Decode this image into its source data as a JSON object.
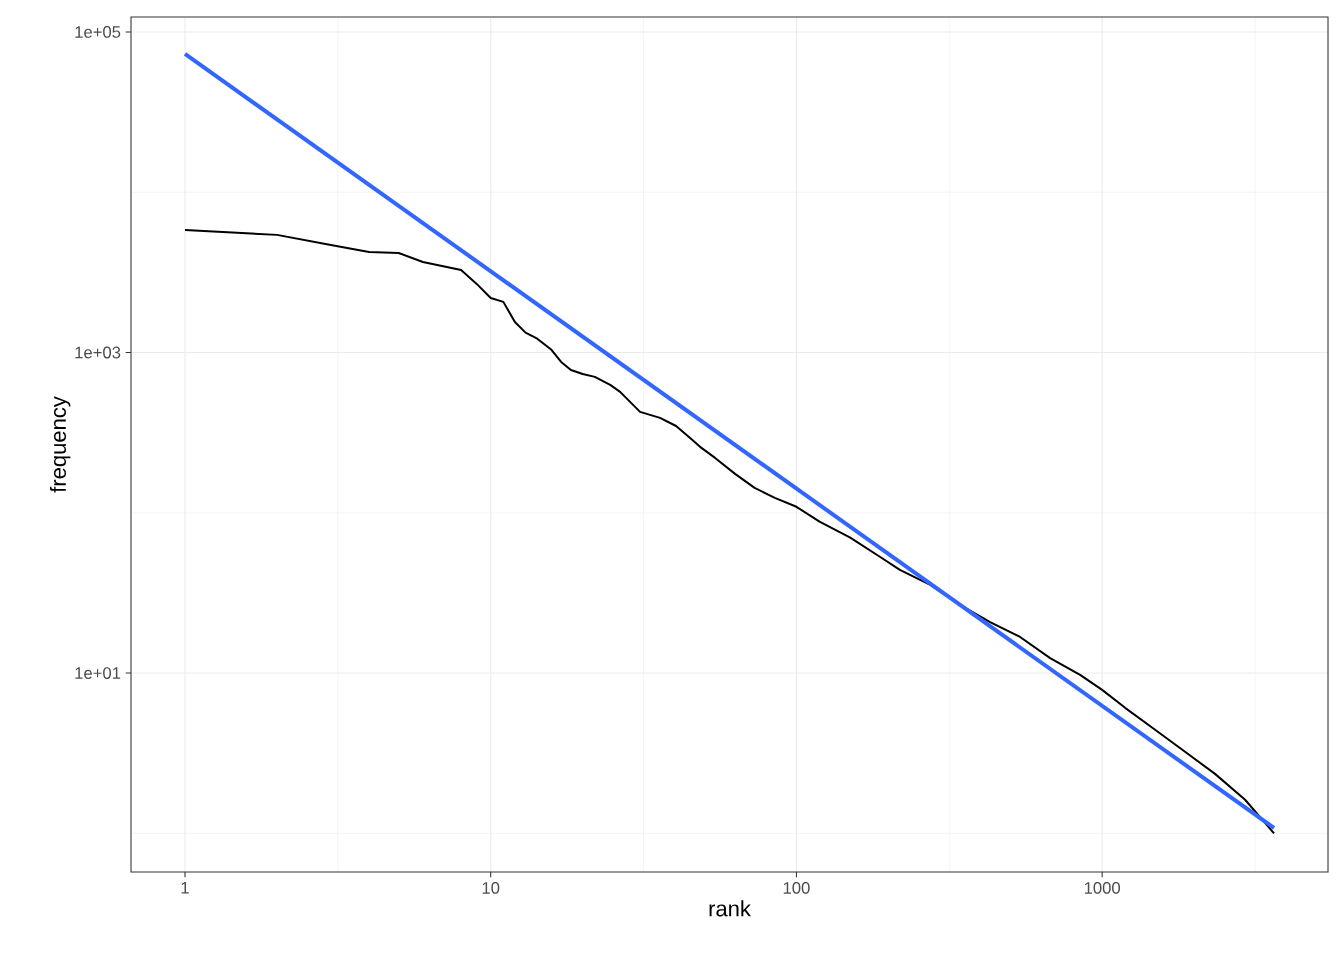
{
  "chart_data": {
    "type": "line",
    "xlabel": "rank",
    "ylabel": "frequency",
    "log": "xy",
    "grid": true,
    "xlim": [
      0.666,
      5480
    ],
    "ylim": [
      0.574,
      124000
    ],
    "xticks": [
      1,
      10,
      100,
      1000
    ],
    "yticks": [
      {
        "value": 10,
        "label": "1e+01"
      },
      {
        "value": 1000,
        "label": "1e+03"
      },
      {
        "value": 100000,
        "label": "1e+05"
      }
    ],
    "series": [
      {
        "color": "#000000",
        "x": [
          1,
          2,
          3,
          4,
          5,
          6,
          8,
          9,
          10,
          11,
          12,
          13,
          14.2,
          15.8,
          17,
          18.3,
          20,
          21.9,
          24.6,
          26.5,
          30.8,
          35.8,
          40.4,
          44.9,
          48.4,
          54.2,
          63,
          73,
          85,
          100,
          119,
          150,
          188,
          218,
          274,
          343,
          430,
          539,
          676,
          847,
          1000,
          1189,
          1490,
          1867,
          2340,
          2935,
          3650
        ],
        "values": [
          5820,
          5420,
          4690,
          4240,
          4180,
          3670,
          3270,
          2680,
          2190,
          2070,
          1550,
          1330,
          1220,
          1040,
          873,
          778,
          735,
          705,
          628,
          568,
          426,
          391,
          348,
          293,
          258,
          220,
          175,
          143,
          124,
          109,
          88,
          70,
          53,
          44,
          35.5,
          26.6,
          20.8,
          16.8,
          12.4,
          9.75,
          7.86,
          6.07,
          4.43,
          3.23,
          2.35,
          1.62,
          1.0
        ]
      },
      {
        "color": "#3366ff",
        "x": [
          1,
          3650
        ],
        "values": [
          72900,
          1.08
        ]
      }
    ]
  }
}
